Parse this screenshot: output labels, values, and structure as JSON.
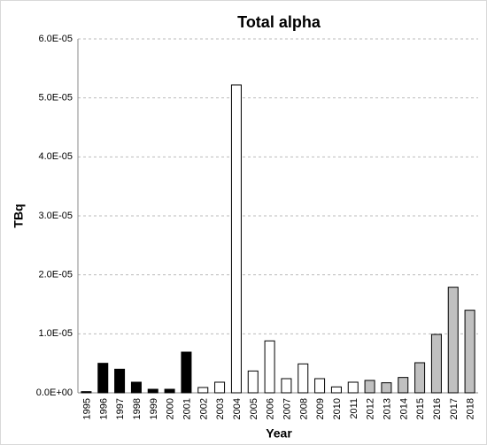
{
  "chart_data": {
    "type": "bar",
    "title": "Total alpha",
    "x_label": "Year",
    "y_label": "TBq",
    "categories": [
      "1995",
      "1996",
      "1997",
      "1998",
      "1999",
      "2000",
      "2001",
      "2002",
      "2003",
      "2004",
      "2005",
      "2006",
      "2007",
      "2008",
      "2009",
      "2010",
      "2011",
      "2012",
      "2013",
      "2014",
      "2015",
      "2016",
      "2017",
      "2018"
    ],
    "values": [
      2e-07,
      5e-06,
      4e-06,
      1.8e-06,
      6e-07,
      6e-07,
      6.9e-06,
      9e-07,
      1.8e-06,
      5.22e-05,
      3.7e-06,
      8.8e-06,
      2.4e-06,
      4.9e-06,
      2.4e-06,
      1e-06,
      1.8e-06,
      2.1e-06,
      1.7e-06,
      2.6e-06,
      5.1e-06,
      9.9e-06,
      1.79e-05,
      1.4e-05
    ],
    "colors": [
      "#000000",
      "#000000",
      "#000000",
      "#000000",
      "#000000",
      "#000000",
      "#000000",
      "#ffffff",
      "#ffffff",
      "#ffffff",
      "#ffffff",
      "#ffffff",
      "#ffffff",
      "#ffffff",
      "#ffffff",
      "#ffffff",
      "#ffffff",
      "#c0c0c0",
      "#c0c0c0",
      "#c0c0c0",
      "#c0c0c0",
      "#c0c0c0",
      "#c0c0c0",
      "#c0c0c0"
    ],
    "ylim": [
      0,
      6e-05
    ],
    "yticks": [
      {
        "value": 0,
        "label": "0.0E+00"
      },
      {
        "value": 1e-05,
        "label": "1.0E-05"
      },
      {
        "value": 2e-05,
        "label": "2.0E-05"
      },
      {
        "value": 3e-05,
        "label": "3.0E-05"
      },
      {
        "value": 4e-05,
        "label": "4.0E-05"
      },
      {
        "value": 5e-05,
        "label": "5.0E-05"
      },
      {
        "value": 6e-05,
        "label": "6.0E-05"
      }
    ],
    "grid": true
  }
}
